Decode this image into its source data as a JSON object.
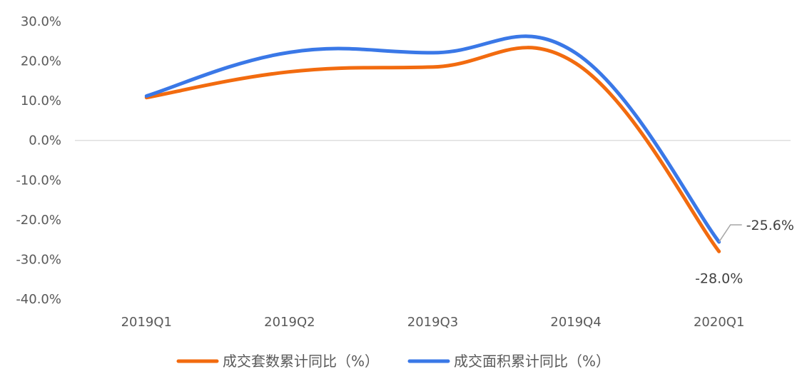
{
  "chart_data": {
    "type": "line",
    "categories": [
      "2019Q1",
      "2019Q2",
      "2019Q3",
      "2019Q4",
      "2020Q1"
    ],
    "series": [
      {
        "name": "成交套数累计同比（%）",
        "color": "#F26B0F",
        "values": [
          10.8,
          17.3,
          18.5,
          19.4,
          -28.0
        ]
      },
      {
        "name": "成交面积累计同比（%）",
        "color": "#3A78E7",
        "values": [
          11.2,
          22.2,
          22.1,
          22.0,
          -25.6
        ]
      }
    ],
    "ylim": [
      -40,
      30
    ],
    "yticks": [
      "30.0%",
      "20.0%",
      "10.0%",
      "0.0%",
      "-10.0%",
      "-20.0%",
      "-30.0%",
      "-40.0%"
    ],
    "data_labels": [
      {
        "series": 0,
        "index": 4,
        "text": "-28.0%"
      },
      {
        "series": 1,
        "index": 4,
        "text": "-25.6%"
      }
    ],
    "legend_position": "bottom",
    "grid": false
  }
}
